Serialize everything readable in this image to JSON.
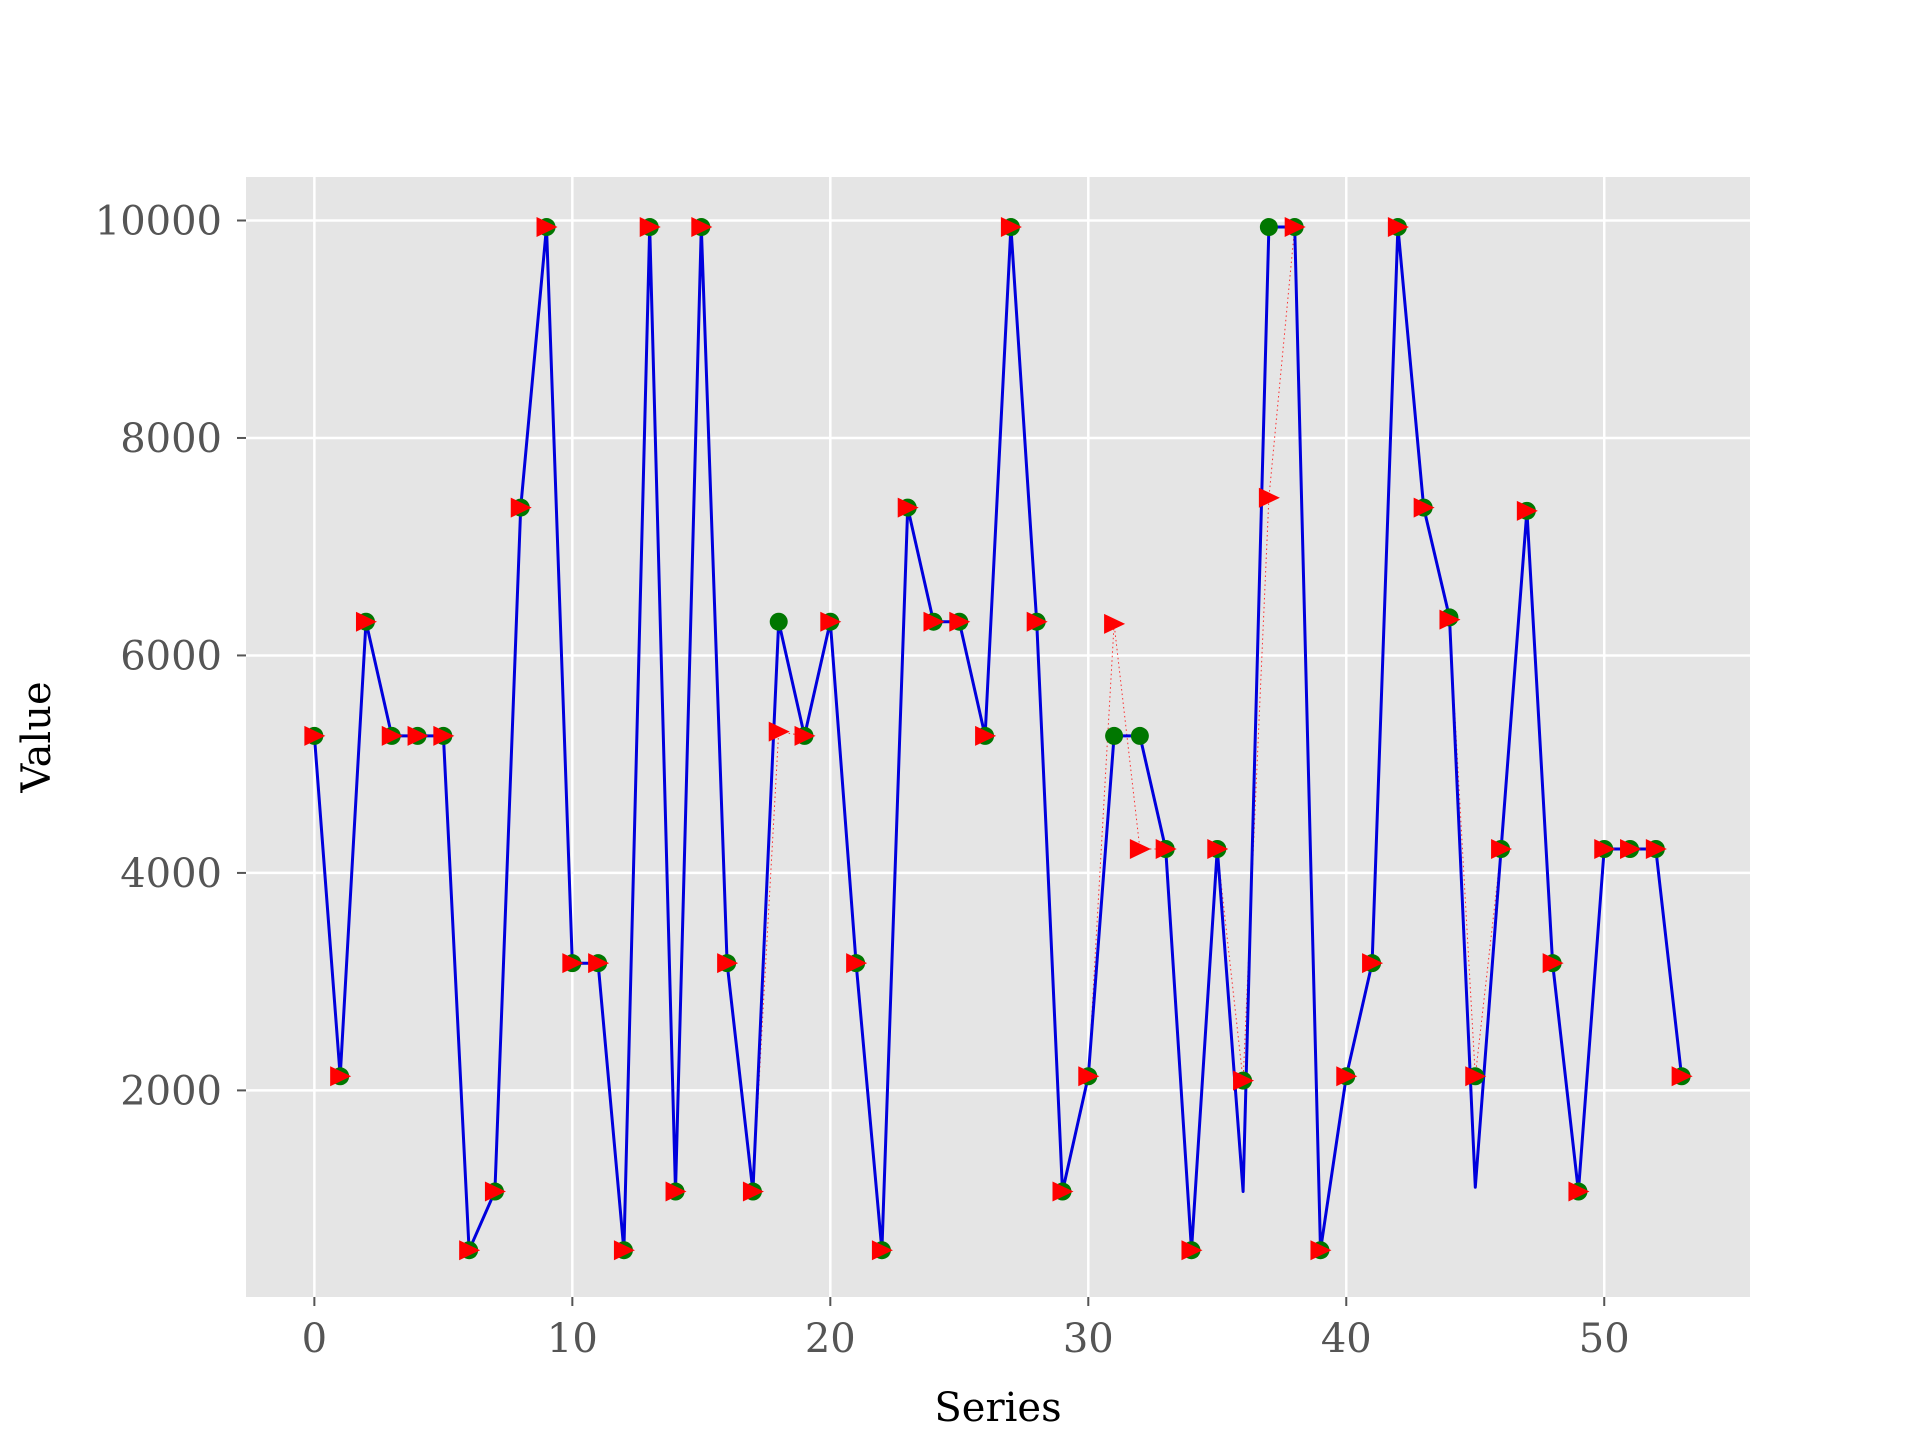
{
  "chart_data": {
    "type": "line",
    "title": "",
    "xlabel": "Series",
    "ylabel": "Value",
    "xlim": [
      -2.65,
      55.65
    ],
    "ylim": [
      100,
      10400
    ],
    "xticks": [
      0,
      10,
      20,
      30,
      40,
      50
    ],
    "yticks": [
      2000,
      4000,
      6000,
      8000,
      10000
    ],
    "grid": true,
    "legend": "none",
    "colors": {
      "background": "#e5e5e5",
      "grid": "#ffffff",
      "line": "#0000dd",
      "circles": "#007700",
      "triangles": "#ff0000",
      "dotted": "#ff0000"
    },
    "series": [
      {
        "style": "blue-line",
        "x": [
          0,
          1,
          2,
          3,
          4,
          5,
          6,
          7,
          8,
          9,
          10,
          11,
          12,
          13,
          14,
          15,
          16,
          17,
          18,
          19,
          20,
          21,
          22,
          23,
          24,
          25,
          26,
          27,
          28,
          29,
          30,
          31,
          32,
          33,
          34,
          35,
          36,
          37,
          38,
          39,
          40,
          41,
          42,
          43,
          44,
          45,
          46,
          47,
          48,
          49,
          50,
          51,
          52,
          53
        ],
        "y": [
          5260,
          2130,
          6310,
          5260,
          5260,
          5260,
          530,
          1070,
          7360,
          9940,
          3170,
          3170,
          530,
          9940,
          1070,
          9940,
          3170,
          1070,
          6310,
          5260,
          6310,
          3170,
          530,
          7360,
          6310,
          6310,
          5260,
          9940,
          6310,
          1070,
          2130,
          5260,
          5260,
          4220,
          530,
          4220,
          1070,
          9940,
          9940,
          530,
          2130,
          3170,
          9940,
          7360,
          6350,
          1110,
          4220,
          7330,
          3170,
          1070,
          4220,
          4220,
          4220,
          2130
        ]
      },
      {
        "style": "green-circles",
        "x": [
          0,
          1,
          2,
          3,
          4,
          5,
          6,
          7,
          8,
          9,
          10,
          11,
          12,
          13,
          14,
          15,
          16,
          17,
          18,
          19,
          20,
          21,
          22,
          23,
          24,
          25,
          26,
          27,
          28,
          29,
          30,
          31,
          32,
          33,
          34,
          35,
          36,
          37,
          38,
          39,
          40,
          41,
          42,
          43,
          44,
          45,
          46,
          47,
          48,
          49,
          50,
          51,
          52,
          53
        ],
        "y": [
          5260,
          2130,
          6310,
          5260,
          5260,
          5260,
          530,
          1070,
          7360,
          9940,
          3170,
          3170,
          530,
          9940,
          1070,
          9940,
          3170,
          1070,
          6310,
          5260,
          6310,
          3170,
          530,
          7360,
          6310,
          6310,
          5260,
          9940,
          6310,
          1070,
          2130,
          5260,
          5260,
          4220,
          530,
          4220,
          2090,
          9940,
          9940,
          530,
          2130,
          3170,
          9940,
          7360,
          6350,
          2130,
          4220,
          7330,
          3170,
          1070,
          4220,
          4220,
          4220,
          2130
        ]
      },
      {
        "style": "red-triangles-dotted",
        "x": [
          0,
          1,
          2,
          3,
          4,
          5,
          6,
          7,
          8,
          9,
          10,
          11,
          12,
          13,
          14,
          15,
          16,
          17,
          18,
          19,
          20,
          21,
          22,
          23,
          24,
          25,
          26,
          27,
          28,
          29,
          30,
          31,
          32,
          33,
          34,
          35,
          36,
          37,
          38,
          39,
          40,
          41,
          42,
          43,
          44,
          45,
          46,
          47,
          48,
          49,
          50,
          51,
          52,
          53
        ],
        "y": [
          5260,
          2130,
          6310,
          5260,
          5260,
          5260,
          530,
          1070,
          7360,
          9940,
          3170,
          3170,
          530,
          9940,
          1070,
          9940,
          3170,
          1070,
          5300,
          5260,
          6310,
          3170,
          530,
          7360,
          6310,
          6310,
          5260,
          9940,
          6310,
          1070,
          2130,
          6290,
          4220,
          4220,
          530,
          4220,
          2090,
          7450,
          9940,
          530,
          2130,
          3170,
          9940,
          7360,
          6330,
          2130,
          4220,
          7330,
          3170,
          1070,
          4220,
          4220,
          4220,
          2130
        ]
      }
    ]
  }
}
